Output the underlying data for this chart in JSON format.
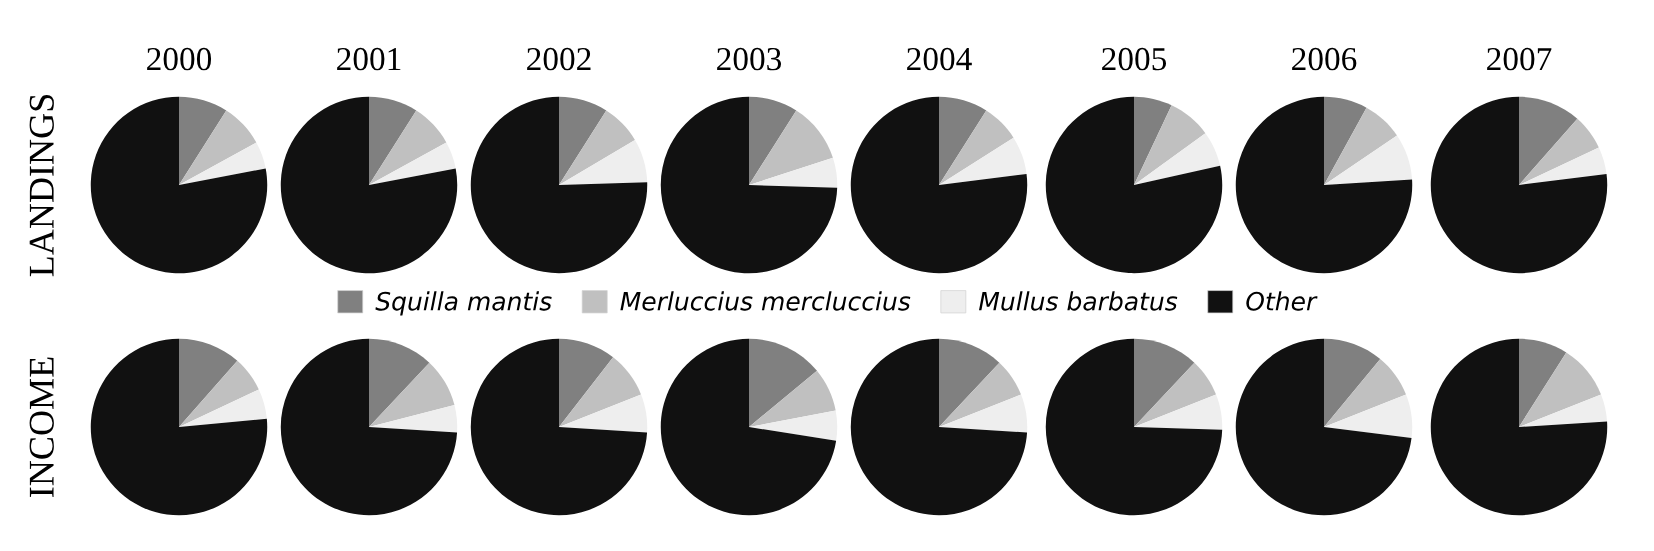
{
  "chart_data": [
    {
      "type": "pie",
      "title": "2000",
      "ylabel": "LANDINGS",
      "legend": "bottom",
      "categories": [
        "Squilla mantis",
        "Merluccius mercluccius",
        "Mullus barbatus",
        "Other"
      ],
      "colors": [
        "#808080",
        "#c0c0c0",
        "#eeeeee",
        "#111111"
      ],
      "values": [
        9,
        8,
        5,
        78
      ]
    },
    {
      "type": "pie",
      "title": "2001",
      "categories": [
        null,
        null,
        null,
        null
      ],
      "colors": [
        "#808080",
        "#c0c0c0",
        "#eeeeee",
        "#111111"
      ],
      "values": [
        9,
        8,
        5,
        78
      ]
    },
    {
      "type": "pie",
      "title": "2002",
      "categories": [
        null,
        null,
        null,
        null
      ],
      "colors": [
        "#808080",
        "#c0c0c0",
        "#eeeeee",
        "#111111"
      ],
      "values": [
        9,
        7.5,
        8,
        75.5
      ]
    },
    {
      "type": "pie",
      "title": "2003",
      "categories": [
        null,
        null,
        null,
        null
      ],
      "colors": [
        "#808080",
        "#c0c0c0",
        "#eeeeee",
        "#111111"
      ],
      "values": [
        9,
        11,
        5.5,
        74.5
      ]
    },
    {
      "type": "pie",
      "title": "2004",
      "categories": [
        null,
        null,
        null,
        null
      ],
      "colors": [
        "#808080",
        "#c0c0c0",
        "#eeeeee",
        "#111111"
      ],
      "values": [
        9,
        7,
        7,
        77
      ]
    },
    {
      "type": "pie",
      "title": "2005",
      "categories": [
        null,
        null,
        null,
        null
      ],
      "colors": [
        "#808080",
        "#c0c0c0",
        "#eeeeee",
        "#111111"
      ],
      "values": [
        7,
        8,
        6.5,
        78.5
      ]
    },
    {
      "type": "pie",
      "title": "2006",
      "categories": [
        null,
        null,
        null,
        null
      ],
      "colors": [
        "#808080",
        "#c0c0c0",
        "#eeeeee",
        "#111111"
      ],
      "values": [
        8,
        7.5,
        8.5,
        76
      ]
    },
    {
      "type": "pie",
      "title": "2007",
      "categories": [
        null,
        null,
        null,
        null
      ],
      "colors": [
        "#808080",
        "#c0c0c0",
        "#eeeeee",
        "#111111"
      ],
      "values": [
        11.5,
        6.5,
        5,
        77
      ]
    },
    {
      "type": "pie",
      "ylabel": "INCOME",
      "categories": [
        null,
        null,
        null,
        null
      ],
      "colors": [
        "#808080",
        "#c0c0c0",
        "#eeeeee",
        "#111111"
      ],
      "values": [
        11.5,
        6.5,
        5.5,
        76.5
      ]
    },
    {
      "type": "pie",
      "categories": [
        null,
        null,
        null,
        null
      ],
      "colors": [
        "#808080",
        "#c0c0c0",
        "#eeeeee",
        "#111111"
      ],
      "values": [
        12,
        9,
        5,
        74
      ]
    },
    {
      "type": "pie",
      "categories": [
        null,
        null,
        null,
        null
      ],
      "colors": [
        "#808080",
        "#c0c0c0",
        "#eeeeee",
        "#111111"
      ],
      "values": [
        10.5,
        8.5,
        7,
        74
      ]
    },
    {
      "type": "pie",
      "categories": [
        null,
        null,
        null,
        null
      ],
      "colors": [
        "#808080",
        "#c0c0c0",
        "#eeeeee",
        "#111111"
      ],
      "values": [
        14,
        8,
        5.5,
        72.5
      ]
    },
    {
      "type": "pie",
      "categories": [
        null,
        null,
        null,
        null
      ],
      "colors": [
        "#808080",
        "#c0c0c0",
        "#eeeeee",
        "#111111"
      ],
      "values": [
        12,
        7,
        7,
        74
      ]
    },
    {
      "type": "pie",
      "categories": [
        null,
        null,
        null,
        null
      ],
      "colors": [
        "#808080",
        "#c0c0c0",
        "#eeeeee",
        "#111111"
      ],
      "values": [
        12,
        7,
        6.5,
        74.5
      ]
    },
    {
      "type": "pie",
      "categories": [
        null,
        null,
        null,
        null
      ],
      "colors": [
        "#808080",
        "#c0c0c0",
        "#eeeeee",
        "#111111"
      ],
      "values": [
        11,
        8,
        8,
        73
      ]
    },
    {
      "type": "pie",
      "categories": [
        null,
        null,
        null,
        null
      ],
      "colors": [
        "#808080",
        "#c0c0c0",
        "#eeeeee",
        "#111111"
      ],
      "values": [
        9,
        10,
        5,
        76
      ]
    }
  ]
}
